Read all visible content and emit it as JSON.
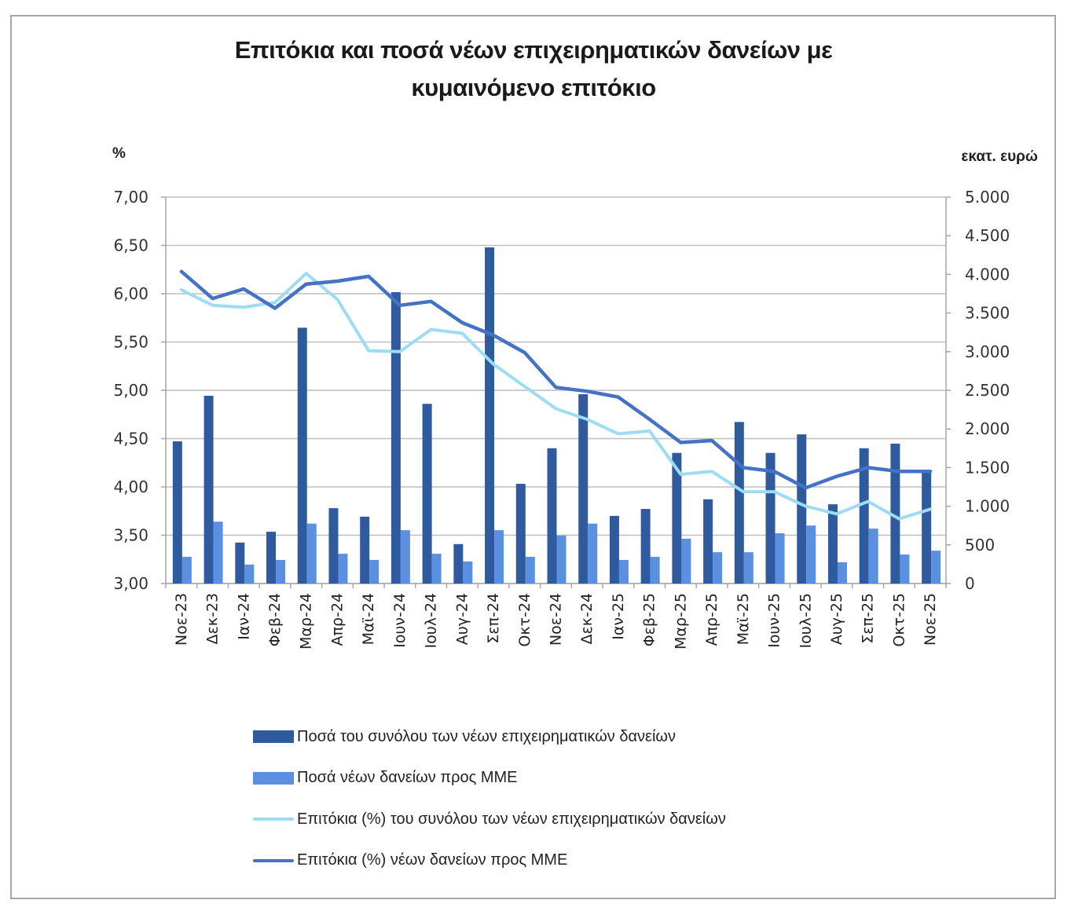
{
  "title_line1": "Επιτόκια και ποσά νέων επιχειρηματικών δανείων με",
  "title_line2": "κυμαινόμενο επιτόκιο",
  "left_unit": "%",
  "right_unit": "εκατ. ευρώ",
  "colors": {
    "total_amount_bar": "#2f5b9e",
    "sme_amount_bar": "#5b8fe0",
    "total_rate_line": "#9ddcf5",
    "sme_rate_line": "#4472c4",
    "gridline": "#bfbfbf",
    "axis": "#a6a6a6"
  },
  "legend": [
    {
      "label": "Ποσά του συνόλου των νέων επιχειρηματικών δανείων",
      "type": "bar",
      "color": "#2f5b9e"
    },
    {
      "label": "Ποσά νέων δανείων προς ΜΜΕ",
      "type": "bar",
      "color": "#5b8fe0"
    },
    {
      "label": "Επιτόκια (%) του συνόλου των νέων επιχειρηματικών δανείων",
      "type": "line",
      "color": "#9ddcf5"
    },
    {
      "label": "Επιτόκια (%) νέων δανείων προς ΜΜΕ",
      "type": "line",
      "color": "#4472c4"
    }
  ],
  "chart_data": {
    "type": "bar+line (dual axis)",
    "title": "Επιτόκια και ποσά νέων επιχειρηματικών δανείων με κυμαινόμενο επιτόκιο",
    "xlabel": "",
    "ylabel_left": "%",
    "ylabel_right": "εκατ. ευρώ",
    "ylim_left": [
      3.0,
      7.0
    ],
    "ylim_right": [
      0,
      5000
    ],
    "yticks_left": [
      "3,00",
      "3,50",
      "4,00",
      "4,50",
      "5,00",
      "5,50",
      "6,00",
      "6,50",
      "7,00"
    ],
    "yticks_right": [
      "0",
      "500",
      "1.000",
      "1.500",
      "2.000",
      "2.500",
      "3.000",
      "3.500",
      "4.000",
      "4.500",
      "5.000"
    ],
    "grid": true,
    "legend_position": "bottom",
    "categories": [
      "Νοε-23",
      "Δεκ-23",
      "Ιαν-24",
      "Φεβ-24",
      "Μαρ-24",
      "Απρ-24",
      "Μαϊ-24",
      "Ιουν-24",
      "Ιουλ-24",
      "Αυγ-24",
      "Σεπ-24",
      "Οκτ-24",
      "Νοε-24",
      "Δεκ-24",
      "Ιαν-25",
      "Φεβ-25",
      "Μαρ-25",
      "Απρ-25",
      "Μαϊ-25",
      "Ιουν-25",
      "Ιουλ-25",
      "Αυγ-25",
      "Σεπ-25",
      "Οκτ-25",
      "Νοε-25"
    ],
    "series": [
      {
        "name": "Ποσά του συνόλου των νέων επιχειρηματικών δανείων",
        "type": "bar",
        "axis": "right",
        "values": [
          1840,
          2430,
          530,
          670,
          3310,
          975,
          865,
          3770,
          2325,
          510,
          4350,
          1290,
          1750,
          2450,
          875,
          965,
          1690,
          1090,
          2090,
          1690,
          1930,
          1025,
          1750,
          1810,
          1460
        ]
      },
      {
        "name": "Ποσά νέων δανείων προς ΜΜΕ",
        "type": "bar",
        "axis": "right",
        "values": [
          345,
          800,
          245,
          305,
          775,
          385,
          305,
          690,
          385,
          285,
          690,
          345,
          620,
          775,
          305,
          345,
          580,
          405,
          405,
          650,
          750,
          275,
          710,
          375,
          425
        ]
      },
      {
        "name": "Επιτόκια (%) του συνόλου των νέων επιχειρηματικών δανείων",
        "type": "line",
        "axis": "left",
        "values": [
          6.04,
          5.88,
          5.86,
          5.91,
          6.21,
          5.94,
          5.41,
          5.4,
          5.63,
          5.59,
          5.27,
          5.04,
          4.81,
          4.7,
          4.55,
          4.58,
          4.13,
          4.16,
          3.95,
          3.95,
          3.8,
          3.72,
          3.85,
          3.67,
          3.77
        ]
      },
      {
        "name": "Επιτόκια (%) νέων δανείων προς ΜΜΕ",
        "type": "line",
        "axis": "left",
        "values": [
          6.23,
          5.95,
          6.05,
          5.85,
          6.1,
          6.13,
          6.18,
          5.88,
          5.92,
          5.7,
          5.57,
          5.39,
          5.03,
          4.99,
          4.93,
          4.7,
          4.46,
          4.48,
          4.2,
          4.16,
          3.99,
          4.11,
          4.2,
          4.16,
          4.16
        ]
      }
    ]
  }
}
